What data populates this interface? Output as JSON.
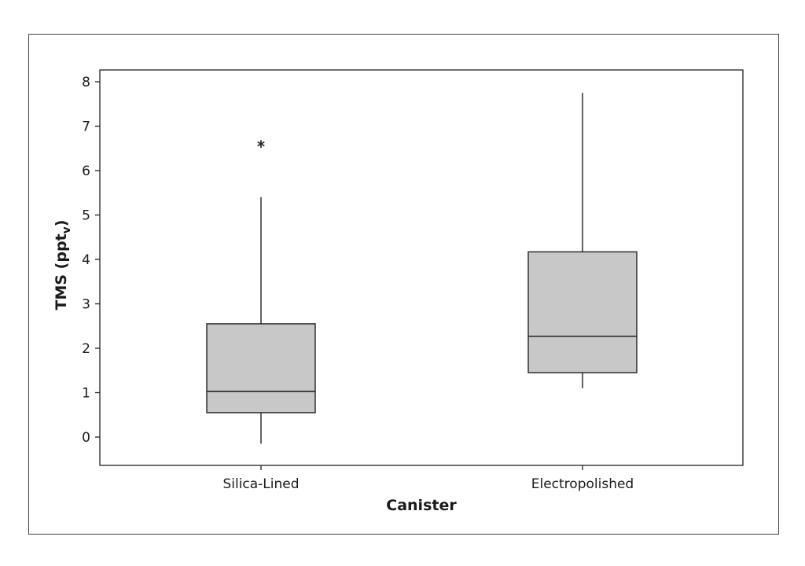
{
  "chart_data": {
    "type": "boxplot",
    "title": "",
    "xlabel": "Canister",
    "ylabel": "TMS (ppt",
    "ylabel_subscript": "v",
    "ylabel_close": ")",
    "ylim": [
      -0.6,
      8.3
    ],
    "yticks": [
      0,
      1,
      2,
      3,
      4,
      5,
      6,
      7,
      8
    ],
    "grid": false,
    "legend": "none",
    "box_fill": "#c8c8c8",
    "categories": [
      "Silica-Lined",
      "Electropolished"
    ],
    "boxes": [
      {
        "category": "Silica-Lined",
        "whisker_low": -0.15,
        "q1": 0.55,
        "median": 1.03,
        "q3": 2.55,
        "whisker_high": 5.4,
        "outliers": [
          6.6
        ]
      },
      {
        "category": "Electropolished",
        "whisker_low": 1.1,
        "q1": 1.45,
        "median": 2.27,
        "q3": 4.17,
        "whisker_high": 7.75,
        "outliers": []
      }
    ]
  }
}
